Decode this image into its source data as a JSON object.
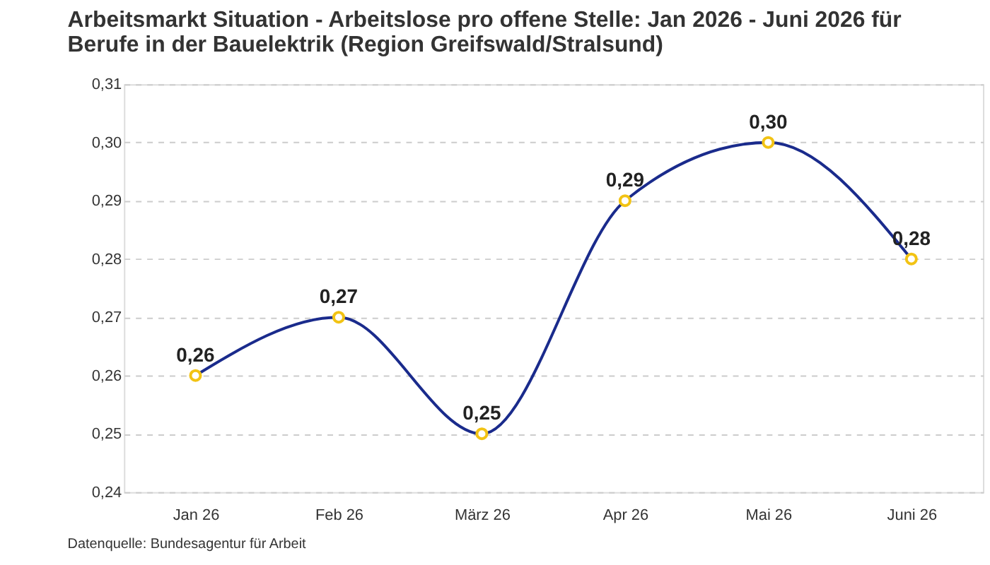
{
  "chart_data": {
    "type": "line",
    "title": "Arbeitsmarkt Situation - Arbeitslose pro offene Stelle: Jan 2026 - Juni 2026 für Berufe in der Bauelektrik (Region Greifswald/Stralsund)",
    "categories": [
      "Jan 26",
      "Feb 26",
      "März 26",
      "Apr 26",
      "Mai 26",
      "Juni 26"
    ],
    "series": [
      {
        "color": "#1a2b8c",
        "values": [
          0.26,
          0.27,
          0.25,
          0.29,
          0.3,
          0.28
        ]
      }
    ],
    "ylim": [
      0.24,
      0.31
    ],
    "yticks": [
      {
        "value": 0.24,
        "label": "0,24"
      },
      {
        "value": 0.25,
        "label": "0,25"
      },
      {
        "value": 0.26,
        "label": "0,26"
      },
      {
        "value": 0.27,
        "label": "0,27"
      },
      {
        "value": 0.28,
        "label": "0,28"
      },
      {
        "value": 0.29,
        "label": "0,29"
      },
      {
        "value": 0.3,
        "label": "0,30"
      },
      {
        "value": 0.31,
        "label": "0,31"
      }
    ],
    "value_labels": [
      "0,26",
      "0,27",
      "0,25",
      "0,29",
      "0,30",
      "0,28"
    ],
    "grid": "y",
    "marker": "circle",
    "line_style": "solid",
    "annotations": [
      "Datenquelle: Bundesagentur für Arbeit"
    ]
  }
}
